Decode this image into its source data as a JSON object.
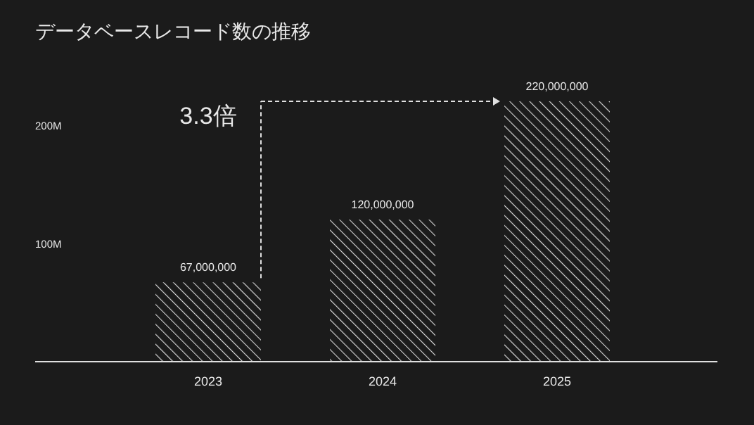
{
  "chart_data": {
    "type": "bar",
    "title": "データベースレコード数の推移",
    "categories": [
      "2023",
      "2024",
      "2025"
    ],
    "values": [
      67000000,
      120000000,
      220000000
    ],
    "value_labels": [
      "67,000,000",
      "120,000,000",
      "220,000,000"
    ],
    "color": "#d9d9d9",
    "ylim": [
      0,
      220000000
    ],
    "yticks": [
      {
        "value": 100000000,
        "label": "100M"
      },
      {
        "value": 200000000,
        "label": "200M"
      }
    ],
    "annotations": [
      "3.3倍"
    ]
  }
}
